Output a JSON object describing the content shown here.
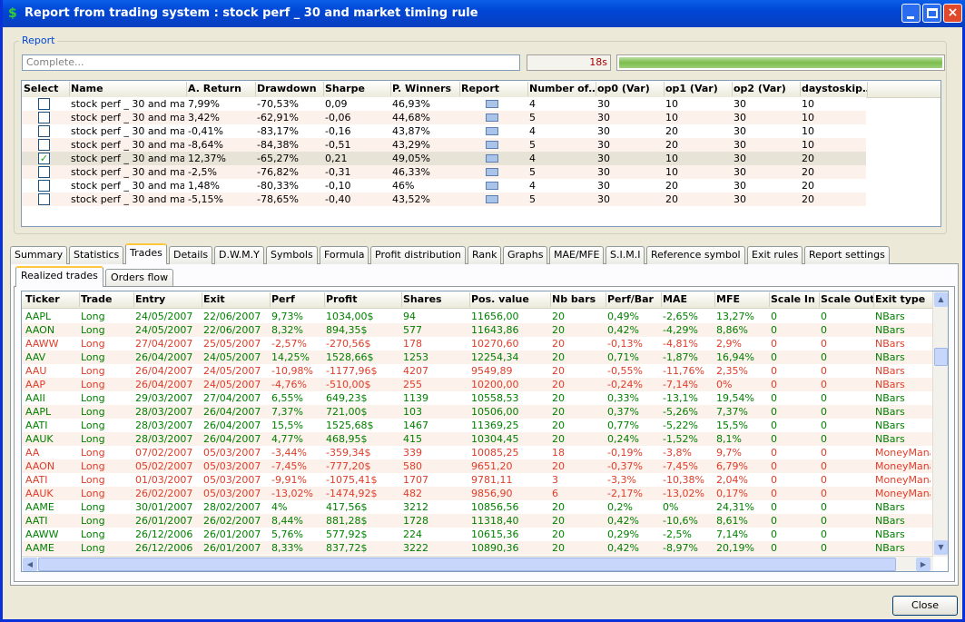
{
  "window": {
    "title": "Report from trading system : stock perf _ 30 and market timing rule"
  },
  "report": {
    "group_label": "Report",
    "status": "Complete...",
    "time": "18s"
  },
  "results": {
    "columns": [
      "Select",
      "Name",
      "A. Return",
      "Drawdown",
      "Sharpe",
      "P. Winners",
      "Report",
      "Number of…",
      "op0 (Var)",
      "op1 (Var)",
      "op2 (Var)",
      "daystoskip…"
    ],
    "selected": [
      false,
      false,
      false,
      false,
      true,
      false,
      false,
      false
    ],
    "rows": [
      [
        "stock perf _ 30 and ma...",
        "7,99%",
        "-70,53%",
        "0,09",
        "46,93%",
        "4",
        "30",
        "10",
        "30",
        "10"
      ],
      [
        "stock perf _ 30 and ma...",
        "3,42%",
        "-62,91%",
        "-0,06",
        "44,68%",
        "5",
        "30",
        "10",
        "30",
        "10"
      ],
      [
        "stock perf _ 30 and ma...",
        "-0,41%",
        "-83,17%",
        "-0,16",
        "43,87%",
        "4",
        "30",
        "20",
        "30",
        "10"
      ],
      [
        "stock perf _ 30 and ma...",
        "-8,64%",
        "-84,38%",
        "-0,51",
        "43,29%",
        "5",
        "30",
        "20",
        "30",
        "10"
      ],
      [
        "stock perf _ 30 and ma...",
        "12,37%",
        "-65,27%",
        "0,21",
        "49,05%",
        "4",
        "30",
        "10",
        "30",
        "20"
      ],
      [
        "stock perf _ 30 and ma...",
        "-2,5%",
        "-76,82%",
        "-0,31",
        "46,33%",
        "5",
        "30",
        "10",
        "30",
        "20"
      ],
      [
        "stock perf _ 30 and ma...",
        "1,48%",
        "-80,33%",
        "-0,10",
        "46%",
        "4",
        "30",
        "20",
        "30",
        "20"
      ],
      [
        "stock perf _ 30 and ma...",
        "-5,15%",
        "-78,65%",
        "-0,40",
        "43,52%",
        "5",
        "30",
        "20",
        "30",
        "20"
      ]
    ]
  },
  "tabs": {
    "items": [
      "Summary",
      "Statistics",
      "Trades",
      "Details",
      "D.W.M.Y",
      "Symbols",
      "Formula",
      "Profit distribution",
      "Rank",
      "Graphs",
      "MAE/MFE",
      "S.I.M.I",
      "Reference symbol",
      "Exit rules",
      "Report settings"
    ],
    "active": 2
  },
  "subtabs": {
    "items": [
      "Realized trades",
      "Orders flow"
    ],
    "active": 0
  },
  "trades": {
    "columns": [
      "Ticker",
      "Trade",
      "Entry",
      "Exit",
      "Perf",
      "Profit",
      "Shares",
      "Pos. value",
      "Nb bars",
      "Perf/Bar",
      "MAE",
      "MFE",
      "Scale In",
      "Scale Out",
      "Exit type"
    ],
    "row_colors": [
      "#008000",
      "#008000",
      "#e03c28",
      "#008000",
      "#e03c28",
      "#e03c28",
      "#008000",
      "#008000",
      "#008000",
      "#008000",
      "#e03c28",
      "#e03c28",
      "#e03c28",
      "#e03c28",
      "#008000",
      "#008000",
      "#008000",
      "#008000"
    ],
    "rows": [
      [
        "AAPL",
        "Long",
        "24/05/2007",
        "22/06/2007",
        "9,73%",
        "1034,00$",
        "94",
        "11656,00",
        "20",
        "0,49%",
        "-2,65%",
        "13,27%",
        "0",
        "0",
        "NBars"
      ],
      [
        "AAON",
        "Long",
        "24/05/2007",
        "22/06/2007",
        "8,32%",
        "894,35$",
        "577",
        "11643,86",
        "20",
        "0,42%",
        "-4,29%",
        "8,86%",
        "0",
        "0",
        "NBars"
      ],
      [
        "AAWW",
        "Long",
        "27/04/2007",
        "25/05/2007",
        "-2,57%",
        "-270,56$",
        "178",
        "10270,60",
        "20",
        "-0,13%",
        "-4,81%",
        "2,9%",
        "0",
        "0",
        "NBars"
      ],
      [
        "AAV",
        "Long",
        "26/04/2007",
        "24/05/2007",
        "14,25%",
        "1528,66$",
        "1253",
        "12254,34",
        "20",
        "0,71%",
        "-1,87%",
        "16,94%",
        "0",
        "0",
        "NBars"
      ],
      [
        "AAU",
        "Long",
        "26/04/2007",
        "24/05/2007",
        "-10,98%",
        "-1177,96$",
        "4207",
        "9549,89",
        "20",
        "-0,55%",
        "-11,76%",
        "2,35%",
        "0",
        "0",
        "NBars"
      ],
      [
        "AAP",
        "Long",
        "26/04/2007",
        "24/05/2007",
        "-4,76%",
        "-510,00$",
        "255",
        "10200,00",
        "20",
        "-0,24%",
        "-7,14%",
        "0%",
        "0",
        "0",
        "NBars"
      ],
      [
        "AAII",
        "Long",
        "29/03/2007",
        "27/04/2007",
        "6,55%",
        "649,23$",
        "1139",
        "10558,53",
        "20",
        "0,33%",
        "-13,1%",
        "19,54%",
        "0",
        "0",
        "NBars"
      ],
      [
        "AAPL",
        "Long",
        "28/03/2007",
        "26/04/2007",
        "7,37%",
        "721,00$",
        "103",
        "10506,00",
        "20",
        "0,37%",
        "-5,26%",
        "7,37%",
        "0",
        "0",
        "NBars"
      ],
      [
        "AATI",
        "Long",
        "28/03/2007",
        "26/04/2007",
        "15,5%",
        "1525,68$",
        "1467",
        "11369,25",
        "20",
        "0,77%",
        "-5,22%",
        "15,5%",
        "0",
        "0",
        "NBars"
      ],
      [
        "AAUK",
        "Long",
        "28/03/2007",
        "26/04/2007",
        "4,77%",
        "468,95$",
        "415",
        "10304,45",
        "20",
        "0,24%",
        "-1,52%",
        "8,1%",
        "0",
        "0",
        "NBars"
      ],
      [
        "AA",
        "Long",
        "07/02/2007",
        "05/03/2007",
        "-3,44%",
        "-359,34$",
        "339",
        "10085,25",
        "18",
        "-0,19%",
        "-3,8%",
        "9,7%",
        "0",
        "0",
        "MoneyManag"
      ],
      [
        "AAON",
        "Long",
        "05/02/2007",
        "05/03/2007",
        "-7,45%",
        "-777,20$",
        "580",
        "9651,20",
        "20",
        "-0,37%",
        "-7,45%",
        "6,79%",
        "0",
        "0",
        "MoneyManag"
      ],
      [
        "AATI",
        "Long",
        "01/03/2007",
        "05/03/2007",
        "-9,91%",
        "-1075,41$",
        "1707",
        "9781,11",
        "3",
        "-3,3%",
        "-10,38%",
        "2,04%",
        "0",
        "0",
        "MoneyManag"
      ],
      [
        "AAUK",
        "Long",
        "26/02/2007",
        "05/03/2007",
        "-13,02%",
        "-1474,92$",
        "482",
        "9856,90",
        "6",
        "-2,17%",
        "-13,02%",
        "0,17%",
        "0",
        "0",
        "MoneyManag"
      ],
      [
        "AAME",
        "Long",
        "30/01/2007",
        "28/02/2007",
        "4%",
        "417,56$",
        "3212",
        "10856,56",
        "20",
        "0,2%",
        "0%",
        "24,31%",
        "0",
        "0",
        "NBars"
      ],
      [
        "AATI",
        "Long",
        "26/01/2007",
        "26/02/2007",
        "8,44%",
        "881,28$",
        "1728",
        "11318,40",
        "20",
        "0,42%",
        "-10,6%",
        "8,61%",
        "0",
        "0",
        "NBars"
      ],
      [
        "AAWW",
        "Long",
        "26/12/2006",
        "26/01/2007",
        "5,76%",
        "577,92$",
        "224",
        "10615,36",
        "20",
        "0,29%",
        "-2,5%",
        "7,14%",
        "0",
        "0",
        "NBars"
      ],
      [
        "AAME",
        "Long",
        "26/12/2006",
        "26/01/2007",
        "8,33%",
        "837,72$",
        "3222",
        "10890,36",
        "20",
        "0,42%",
        "-8,97%",
        "20,19%",
        "0",
        "0",
        "NBars"
      ]
    ]
  },
  "buttons": {
    "close": "Close"
  }
}
